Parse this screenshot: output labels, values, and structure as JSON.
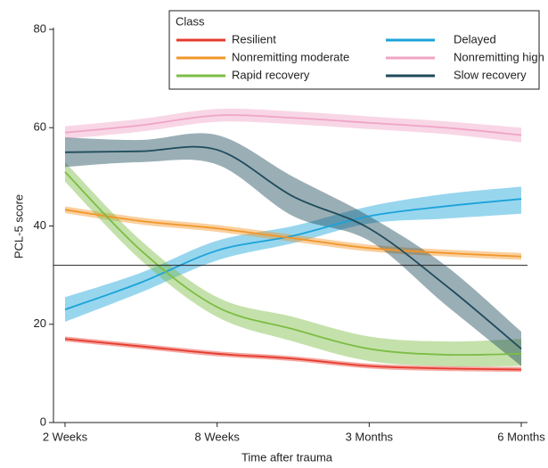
{
  "chart_data": {
    "type": "line",
    "x_label": "Time after trauma",
    "y_label": "PCL-5 score",
    "categories": [
      "2 Weeks",
      null,
      "8 Weeks",
      null,
      "3 Months",
      null,
      "6 Months"
    ],
    "ylim": [
      0,
      80
    ],
    "yticks": [
      0,
      20,
      40,
      60,
      80
    ],
    "hlines": [
      32
    ],
    "legend_title": "Class",
    "legend": "top-right",
    "series": [
      {
        "name": "Resilient",
        "color": "#e63b2e",
        "values": [
          17,
          15.5,
          14,
          13,
          11.5,
          11,
          10.8
        ],
        "lower": [
          16.5,
          15,
          13.5,
          12.5,
          11,
          10.5,
          10.3
        ],
        "upper": [
          17.5,
          16,
          14.5,
          13.5,
          12,
          11.5,
          11.3
        ]
      },
      {
        "name": "Delayed",
        "color": "#1ba3d9",
        "values": [
          23,
          28.5,
          35,
          38,
          42,
          44,
          45.5
        ],
        "lower": [
          20.5,
          26.5,
          33,
          36.5,
          40.5,
          41.5,
          42.5
        ],
        "upper": [
          25.5,
          30.5,
          37,
          40,
          44,
          46.5,
          48
        ]
      },
      {
        "name": "Nonremitting moderate",
        "color": "#f2962a",
        "values": [
          43.3,
          41,
          39.5,
          37.5,
          35.5,
          34.5,
          33.8
        ],
        "lower": [
          42.6,
          40.3,
          38.8,
          36.8,
          34.8,
          33.8,
          33.1
        ],
        "upper": [
          44,
          41.7,
          40.2,
          38.2,
          36.2,
          35.2,
          34.5
        ]
      },
      {
        "name": "Nonremitting high",
        "color": "#f0a4c6",
        "values": [
          59,
          60.5,
          62.5,
          62,
          61,
          60,
          58.5
        ],
        "lower": [
          57.7,
          59.2,
          61.2,
          60.7,
          59.7,
          58.7,
          57
        ],
        "upper": [
          60.3,
          61.8,
          63.8,
          63.3,
          62.3,
          61.3,
          60
        ]
      },
      {
        "name": "Rapid recovery",
        "color": "#7cbd45",
        "values": [
          51,
          35,
          23.5,
          19,
          15,
          13.8,
          14
        ],
        "lower": [
          49,
          33,
          21.5,
          16.5,
          12.5,
          11.5,
          11.5
        ],
        "upper": [
          53,
          37,
          25.5,
          21.5,
          17.5,
          16.5,
          17
        ]
      },
      {
        "name": "Slow recovery",
        "color": "#1f4b5c",
        "values": [
          55,
          55.2,
          55.5,
          46,
          39.5,
          28,
          15
        ],
        "lower": [
          52,
          53,
          52.5,
          42,
          37,
          24,
          11.5
        ],
        "upper": [
          58,
          57.5,
          58.5,
          50,
          42,
          32,
          18.5
        ]
      }
    ]
  }
}
